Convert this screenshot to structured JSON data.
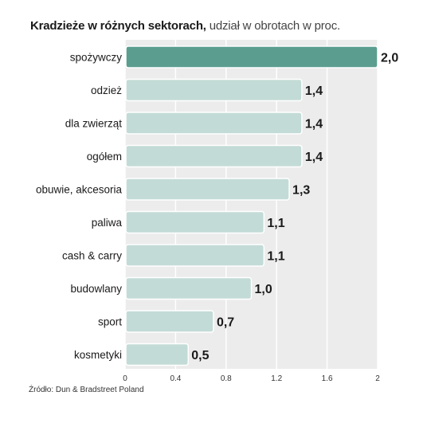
{
  "title": {
    "bold": "Kradzieże w różnych sektorach,",
    "light": " udział w obrotach w proc."
  },
  "source": "Źródło: Dun & Bradstreet Poland",
  "colors": {
    "highlight_bar": "#5b9e8f",
    "bar": "#c3dbd6",
    "plot_bg": "#ececec",
    "grid": "#ffffff"
  },
  "chart_data": {
    "type": "bar",
    "orientation": "horizontal",
    "categories": [
      "spożywczy",
      "odzież",
      "dla zwierząt",
      "ogółem",
      "obuwie, akcesoria",
      "paliwa",
      "cash & carry",
      "budowlany",
      "sport",
      "kosmetyki"
    ],
    "values": [
      2.0,
      1.4,
      1.4,
      1.4,
      1.3,
      1.1,
      1.1,
      1.0,
      0.7,
      0.5
    ],
    "value_labels": [
      "2,0",
      "1,4",
      "1,4",
      "1,4",
      "1,3",
      "1,1",
      "1,1",
      "1,0",
      "0,7",
      "0,5"
    ],
    "highlight_index": 0,
    "xlim": [
      0,
      2
    ],
    "xticks": [
      0,
      0.4,
      0.8,
      1.2,
      1.6,
      2
    ],
    "xtick_labels": [
      "0",
      "0.4",
      "0.8",
      "1.2",
      "1.6",
      "2"
    ],
    "grid": true
  }
}
